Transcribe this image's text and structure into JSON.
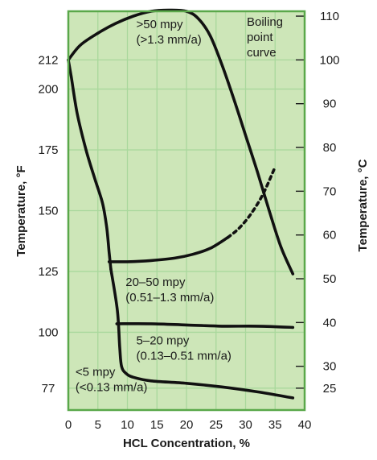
{
  "chart_data": {
    "type": "line",
    "title": "",
    "xlabel": "HCL Concentration, %",
    "ylabel": "Temperature, °F",
    "y2label": "Temperature, °C",
    "xlim": [
      0,
      40
    ],
    "ylim_f": [
      68,
      232
    ],
    "x_ticks": [
      "0",
      "5",
      "10",
      "15",
      "20",
      "25",
      "30",
      "35",
      "40"
    ],
    "yf_ticks": [
      {
        "label": "77",
        "value": 77
      },
      {
        "label": "100",
        "value": 100
      },
      {
        "label": "125",
        "value": 125
      },
      {
        "label": "150",
        "value": 150
      },
      {
        "label": "175",
        "value": 175
      },
      {
        "label": "200",
        "value": 200
      },
      {
        "label": "212",
        "value": 212
      }
    ],
    "yc_ticks": [
      {
        "label": "25",
        "value": 25
      },
      {
        "label": "30",
        "value": 30
      },
      {
        "label": "40",
        "value": 40
      },
      {
        "label": "50",
        "value": 50
      },
      {
        "label": "60",
        "value": 60
      },
      {
        "label": "70",
        "value": 70
      },
      {
        "label": "80",
        "value": 80
      },
      {
        "label": "90",
        "value": 90
      },
      {
        "label": "100",
        "value": 100
      },
      {
        "label": "110",
        "value": 110
      }
    ],
    "grid": true,
    "colors": {
      "frame": "#5aa84a",
      "grid": "#a9d89c",
      "background": "#cde6b8",
      "line": "#111111"
    },
    "series": [
      {
        "style": "solid",
        "points": [
          [
            0,
            212
          ],
          [
            2,
            218
          ],
          [
            5,
            223
          ],
          [
            8,
            227
          ],
          [
            11,
            230
          ],
          [
            14,
            232
          ],
          [
            17,
            232.5
          ],
          [
            20,
            232
          ],
          [
            22,
            229
          ],
          [
            24,
            222
          ],
          [
            26,
            210
          ],
          [
            28,
            196
          ],
          [
            30,
            181
          ],
          [
            32,
            166
          ],
          [
            34,
            150
          ],
          [
            36,
            135
          ],
          [
            38,
            124
          ]
        ]
      },
      {
        "style": "solid",
        "points": [
          [
            0,
            212
          ],
          [
            0.5,
            205
          ],
          [
            1.5,
            190
          ],
          [
            3,
            175
          ],
          [
            4.5,
            163
          ],
          [
            5.8,
            153
          ],
          [
            6.5,
            143
          ],
          [
            6.9,
            133
          ],
          [
            7.2,
            126
          ]
        ]
      },
      {
        "style": "solid",
        "points": [
          [
            7.2,
            126
          ],
          [
            8.3,
            109
          ],
          [
            8.7,
            94
          ],
          [
            9,
            86
          ],
          [
            9.8,
            83
          ],
          [
            11,
            81.5
          ],
          [
            14,
            80
          ],
          [
            20,
            79
          ],
          [
            26,
            77.5
          ],
          [
            32,
            75.5
          ],
          [
            38,
            73
          ]
        ]
      },
      {
        "style": "solid",
        "points": [
          [
            6.9,
            129
          ],
          [
            10,
            129
          ],
          [
            14,
            129.5
          ],
          [
            18,
            130.5
          ],
          [
            21,
            132
          ],
          [
            24,
            134.5
          ],
          [
            27,
            139
          ]
        ]
      },
      {
        "style": "dashed",
        "points": [
          [
            27,
            139
          ],
          [
            29,
            143
          ],
          [
            31,
            149
          ],
          [
            33,
            157
          ],
          [
            35,
            168
          ]
        ]
      },
      {
        "style": "solid",
        "points": [
          [
            8.2,
            103.5
          ],
          [
            14,
            103.5
          ],
          [
            20,
            103
          ],
          [
            26,
            102.5
          ],
          [
            32,
            102.5
          ],
          [
            38,
            102
          ]
        ]
      }
    ],
    "annotations": [
      {
        "lines": [
          ">50 mpy",
          "(>1.3 mm/a)"
        ],
        "x": 11.5,
        "y": 225
      },
      {
        "lines": [
          "Boiling",
          "point",
          "curve"
        ],
        "x": 30.2,
        "y": 226
      },
      {
        "lines": [
          "20–50 mpy",
          "(0.51–1.3 mm/a)"
        ],
        "x": 9.7,
        "y": 119
      },
      {
        "lines": [
          "5–20 mpy",
          "(0.13–0.51 mm/a)"
        ],
        "x": 11.5,
        "y": 95
      },
      {
        "lines": [
          "<5 mpy",
          "(<0.13 mm/a)"
        ],
        "x": 1.2,
        "y": 82
      }
    ]
  }
}
